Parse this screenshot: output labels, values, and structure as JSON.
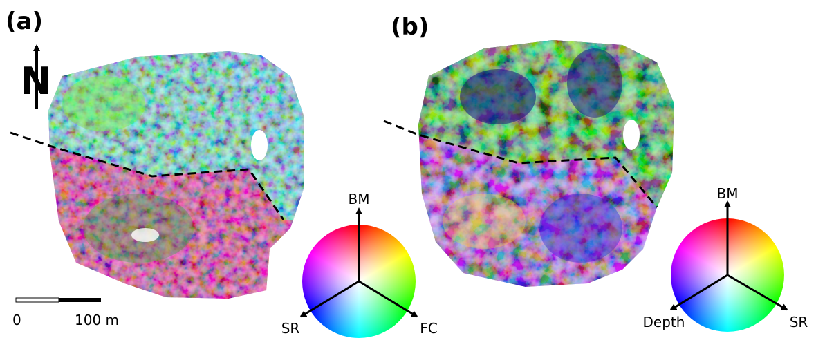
{
  "panel_a": {
    "label": "(a)",
    "north": "N",
    "scale_start": "0",
    "scale_end": "100 m",
    "axes": {
      "top": "BM",
      "left": "SR",
      "right": "FC"
    }
  },
  "panel_b": {
    "label": "(b)",
    "axes": {
      "top": "BM",
      "left": "Depth",
      "right": "SR"
    }
  }
}
